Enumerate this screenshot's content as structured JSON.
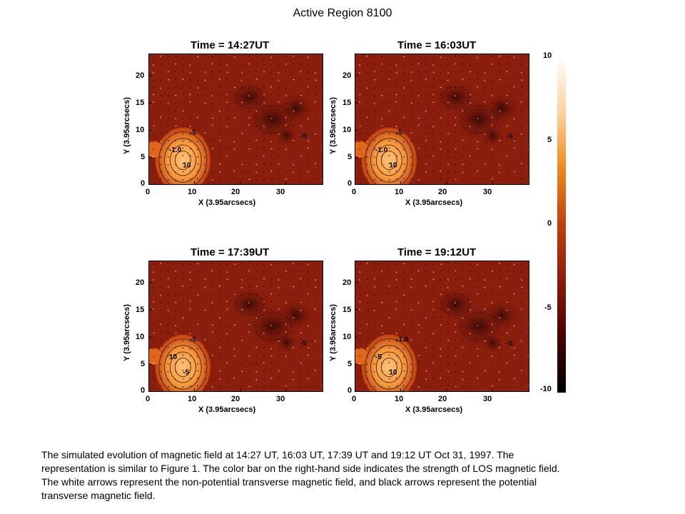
{
  "figure_title": "Active Region 8100",
  "chart_data": [
    {
      "type": "heatmap",
      "title": "Time = 14:27UT",
      "xlabel": "X (3.95arcsecs)",
      "ylabel": "Y (3.95arcsecs)",
      "xticks": [
        "0",
        "10",
        "20",
        "30"
      ],
      "yticks": [
        "0",
        "5",
        "10",
        "15",
        "20"
      ],
      "xlim": [
        0,
        38
      ],
      "ylim": [
        0,
        24
      ],
      "contour_labels": [
        "-5",
        "-1.0",
        "10",
        "-5"
      ]
    },
    {
      "type": "heatmap",
      "title": "Time = 16:03UT",
      "xlabel": "X (3.95arcsecs)",
      "ylabel": "Y (3.95arcsecs)",
      "xticks": [
        "0",
        "10",
        "20",
        "30"
      ],
      "yticks": [
        "0",
        "5",
        "10",
        "15",
        "20"
      ],
      "xlim": [
        0,
        38
      ],
      "ylim": [
        0,
        24
      ],
      "contour_labels": [
        "-5",
        "-1.0",
        "10",
        "-5"
      ]
    },
    {
      "type": "heatmap",
      "title": "Time = 17:39UT",
      "xlabel": "X (3.95arcsecs)",
      "ylabel": "Y (3.95arcsecs)",
      "xticks": [
        "0",
        "10",
        "20",
        "30"
      ],
      "yticks": [
        "0",
        "5",
        "10",
        "15",
        "20"
      ],
      "xlim": [
        0,
        38
      ],
      "ylim": [
        0,
        24
      ],
      "contour_labels": [
        "-5",
        "10",
        "-5",
        "-5"
      ]
    },
    {
      "type": "heatmap",
      "title": "Time = 19:12UT",
      "xlabel": "X (3.95arcsecs)",
      "ylabel": "Y (3.95arcsecs)",
      "xticks": [
        "0",
        "10",
        "20",
        "30"
      ],
      "yticks": [
        "0",
        "5",
        "10",
        "15",
        "20"
      ],
      "xlim": [
        0,
        38
      ],
      "ylim": [
        0,
        24
      ],
      "contour_labels": [
        "-1.0",
        "-5",
        "10",
        "-5"
      ]
    }
  ],
  "colorbar": {
    "ticks": [
      "10",
      "5",
      "0",
      "-5",
      "-10"
    ],
    "range": [
      -10,
      10
    ],
    "colors": [
      "#000000",
      "#4a0000",
      "#8e1a08",
      "#c0400c",
      "#f08a1c",
      "#ffd2a0",
      "#ffffff"
    ]
  },
  "colors": {
    "background_field": "#8b1e0d",
    "negative_dark": "#3a0a04",
    "positive_bright": "#f59a3a"
  },
  "caption": [
    "The simulated evolution of magnetic field at 14:27 UT, 16:03 UT, 17:39 UT and 19:12 UT Oct 31, 1997.  The",
    "representation is similar to Figure 1.  The color bar on the right-hand side indicates the strength of LOS magnetic field.",
    "The white arrows represent the non-potential transverse magnetic field, and black arrows represent the potential",
    "transverse magnetic field."
  ]
}
